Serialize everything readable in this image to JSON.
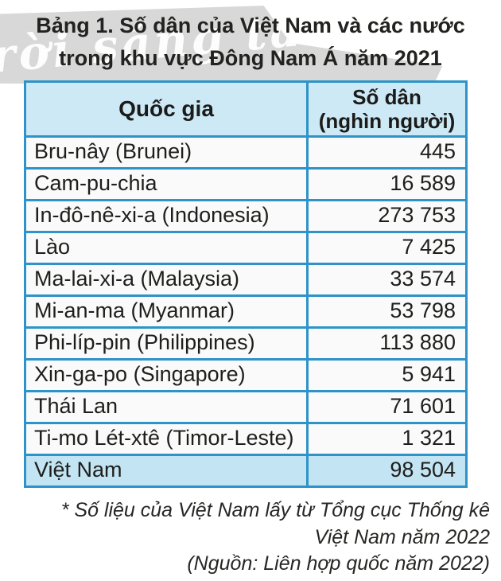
{
  "page": {
    "title_line1": "Bảng 1. Số dân của Việt Nam và các nước",
    "title_line2": "trong khu vực Đông Nam Á năm 2021",
    "watermark_text": "rời sáng tạo"
  },
  "table": {
    "columns": {
      "country": "Quốc gia",
      "population_line1": "Số dân",
      "population_line2": "(nghìn người)"
    },
    "rows": [
      {
        "country": "Bru-nây (Brunei)",
        "population": "445"
      },
      {
        "country": "Cam-pu-chia",
        "population": "16 589"
      },
      {
        "country": "In-đô-nê-xi-a (Indonesia)",
        "population": "273 753"
      },
      {
        "country": "Lào",
        "population": "7 425"
      },
      {
        "country": "Ma-lai-xi-a (Malaysia)",
        "population": "33 574"
      },
      {
        "country": "Mi-an-ma (Myanmar)",
        "population": "53 798"
      },
      {
        "country": "Phi-líp-pin (Philippines)",
        "population": "113 880"
      },
      {
        "country": "Xin-ga-po (Singapore)",
        "population": "5 941"
      },
      {
        "country": "Thái Lan",
        "population": "71 601"
      },
      {
        "country": "Ti-mo Lét-xtê (Timor-Leste)",
        "population": "1 321"
      },
      {
        "country": "Việt Nam",
        "population": "98 504"
      }
    ],
    "highlight_row": "Việt Nam"
  },
  "footnotes": {
    "note_line1": "* Số liệu của Việt Nam lấy từ Tổng cục Thống kê",
    "note_line2": "Việt Nam năm 2022",
    "source": "(Nguồn: Liên hợp quốc năm 2022)"
  },
  "colors": {
    "table_border": "#2d93c8",
    "header_bg": "#cde9f5",
    "highlight_bg": "#c3e4f2",
    "row_bg": "#fafafa",
    "watermark_bg": "#d8d8d8",
    "text": "#1e1e1c"
  }
}
